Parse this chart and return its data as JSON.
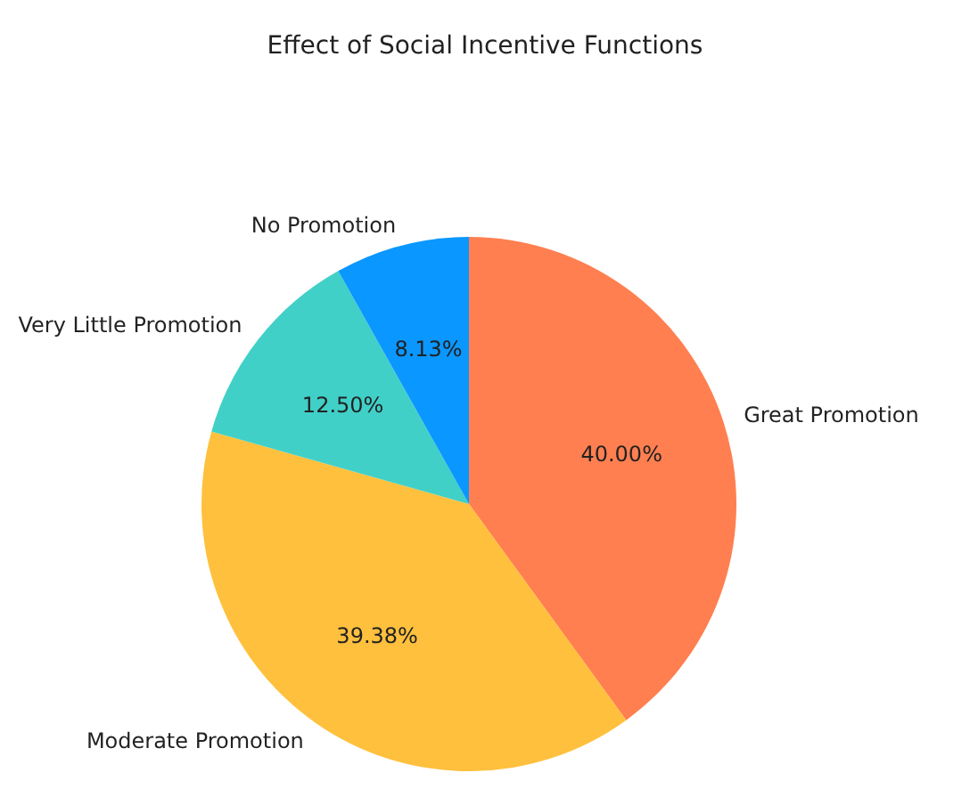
{
  "chart_data": {
    "type": "pie",
    "title": "Effect of Social Incentive Functions",
    "categories": [
      "Great Promotion",
      "Moderate Promotion",
      "Very Little Promotion",
      "No Promotion"
    ],
    "values": [
      40.0,
      39.38,
      12.5,
      8.13
    ],
    "colors": [
      "#ff7f50",
      "#ffc03d",
      "#40d0c8",
      "#0a97ff"
    ],
    "value_labels": [
      "40.00%",
      "39.38%",
      "12.50%",
      "8.13%"
    ],
    "legend": false
  }
}
